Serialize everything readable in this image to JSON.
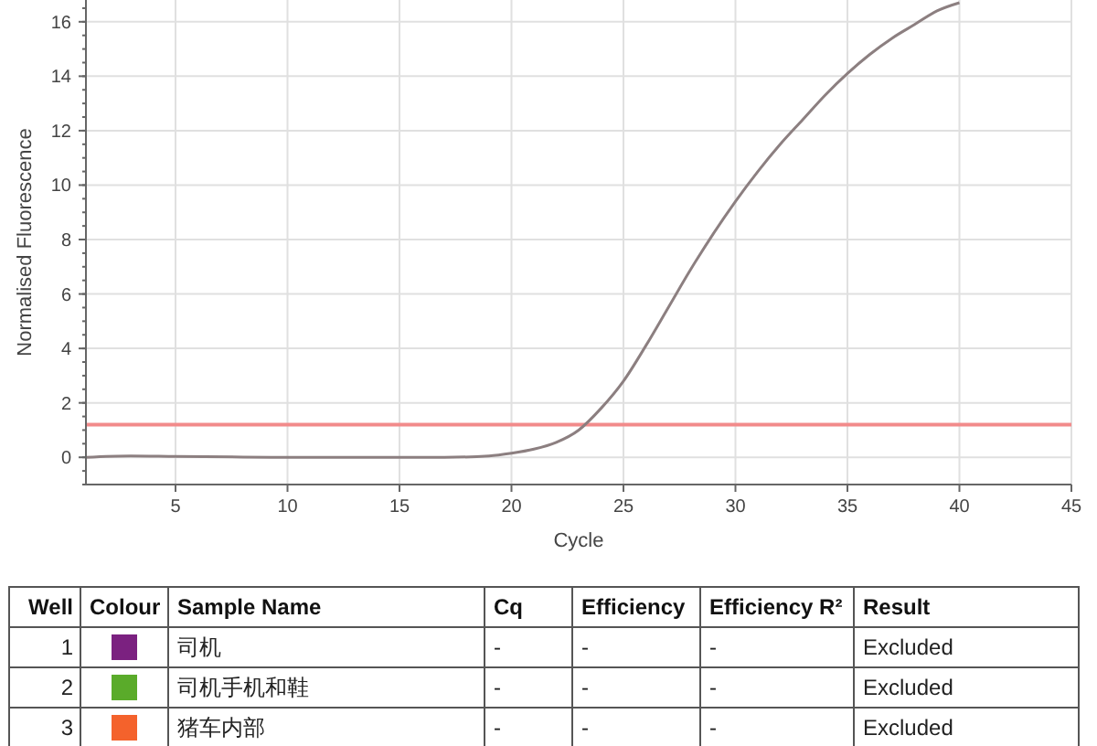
{
  "chart_data": [
    {
      "type": "line",
      "xlabel": "Cycle",
      "ylabel": "Normalised Fluorescence",
      "xlim": [
        1,
        45
      ],
      "ylim": [
        -1,
        16.8
      ],
      "xticks": [
        5,
        10,
        15,
        20,
        25,
        30,
        35,
        40,
        45
      ],
      "yticks": [
        0,
        2,
        4,
        6,
        8,
        10,
        12,
        14,
        16
      ],
      "grid": true,
      "marker": "none",
      "line_style": "solid",
      "series": [
        {
          "color": "#8c7f80",
          "x": [
            1,
            3,
            5,
            8,
            10,
            13,
            17,
            19,
            20,
            21,
            22,
            23,
            24,
            25,
            26,
            27,
            28,
            29,
            30,
            31,
            32,
            33,
            34,
            35,
            36,
            37,
            38,
            39,
            40
          ],
          "values": [
            0,
            0.05,
            0.03,
            0.01,
            0,
            0,
            0,
            0.05,
            0.15,
            0.3,
            0.55,
            1.0,
            1.8,
            2.8,
            4.1,
            5.5,
            6.9,
            8.2,
            9.4,
            10.5,
            11.5,
            12.4,
            13.3,
            14.1,
            14.8,
            15.4,
            15.9,
            16.4,
            16.7
          ]
        }
      ],
      "ref_lines": [
        {
          "axis": "y",
          "value": 1.2,
          "color": "#f28b8b"
        }
      ]
    },
    {
      "type": "other",
      "annotations": [
        "Well",
        "Colour",
        "Sample Name",
        "Cq",
        "Efficiency",
        "Efficiency R²",
        "Result"
      ],
      "categories": [
        "司机",
        "司机手机和鞋",
        "猪车内部"
      ],
      "colors": [
        "#7b2180",
        "#5aab2a",
        "#f4622c"
      ],
      "cell_labels": [
        [
          "1",
          null,
          null,
          "-",
          "-",
          "-",
          "Excluded"
        ],
        [
          "2",
          null,
          null,
          "-",
          "-",
          "-",
          "Excluded"
        ],
        [
          "3",
          null,
          null,
          "-",
          "-",
          "-",
          "Excluded"
        ]
      ]
    }
  ]
}
